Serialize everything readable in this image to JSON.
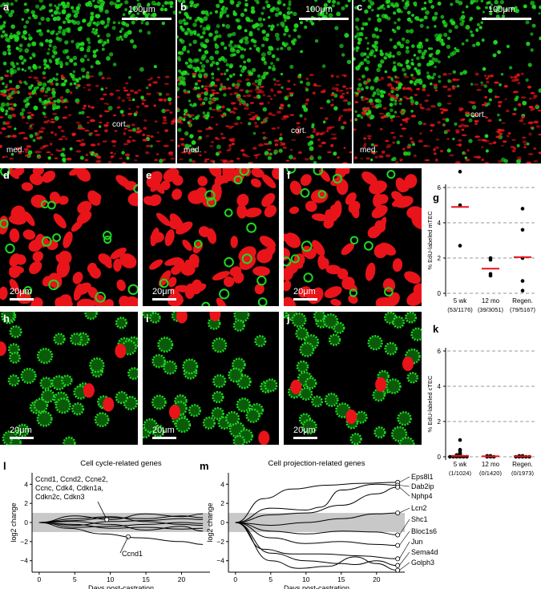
{
  "panels": {
    "a": {
      "label": "a",
      "scale": "100μm",
      "cortex": "cort.",
      "medulla": "med."
    },
    "b": {
      "label": "b",
      "scale": "100μm",
      "cortex": "cort.",
      "medulla": "med."
    },
    "c": {
      "label": "c",
      "scale": "100μm",
      "cortex": "cort.",
      "medulla": "med."
    },
    "d": {
      "label": "d",
      "scale": "20μm"
    },
    "e": {
      "label": "e",
      "scale": "20μm"
    },
    "f": {
      "label": "f",
      "scale": "20μm"
    },
    "h": {
      "label": "h",
      "scale": "20μm"
    },
    "i": {
      "label": "i",
      "scale": "20μm"
    },
    "j": {
      "label": "j",
      "scale": "20μm"
    }
  },
  "colors": {
    "green": "#1fd81f",
    "red": "#e8141a",
    "median": "#e8141a",
    "band": "#c8c8c8"
  },
  "chart_data": [
    {
      "id": "g",
      "label": "g",
      "type": "scatter",
      "ylabel": "% EdU-labeled mTEC",
      "ylim": [
        0,
        6
      ],
      "yticks": [
        0,
        2,
        4,
        6
      ],
      "categories": [
        "5 wk",
        "12 mo",
        "Regen."
      ],
      "counts": [
        "(53/1176)",
        "(39/3051)",
        "(79/5167)"
      ],
      "points": [
        [
          6.9,
          5.0,
          2.7
        ],
        [
          1.9,
          1.1,
          1.0,
          2.0
        ],
        [
          4.8,
          3.6,
          2.0,
          0.7,
          0.15
        ]
      ],
      "medians": [
        4.9,
        1.4,
        2.05
      ],
      "grid": "dashed"
    },
    {
      "id": "k",
      "label": "k",
      "type": "scatter",
      "ylabel": "% EdU-labeled cTEC",
      "ylim": [
        0,
        6
      ],
      "yticks": [
        0,
        2,
        4,
        6
      ],
      "categories": [
        "5 wk",
        "12 mo",
        "Regen."
      ],
      "counts": [
        "(1/1024)",
        "(0/1420)",
        "(0/1973)"
      ],
      "points": [
        [
          0.95,
          0.4,
          0.35,
          0.25,
          0.2,
          0.15,
          0.1,
          0.1,
          0.05,
          0.05,
          0.0,
          0.0,
          0.0,
          0.0,
          0.0,
          0.0
        ],
        [
          0.05,
          0.05,
          0.0,
          0.0,
          0.0
        ],
        [
          0.05,
          0.05,
          0.0,
          0.0,
          0.0,
          0.0,
          0.0
        ]
      ],
      "medians": [
        0.05,
        0.03,
        0.03
      ],
      "grid": "dashed"
    },
    {
      "id": "l",
      "label": "l",
      "type": "line",
      "title": "Cell cycle-related genes",
      "xlabel": "Days post-castration",
      "ylabel": "log2 change",
      "xlim": [
        -1,
        24
      ],
      "ylim": [
        -5.2,
        5.2
      ],
      "xticks": [
        0,
        5,
        10,
        15,
        20
      ],
      "yticks": [
        -4,
        -2,
        0,
        2,
        4
      ],
      "band": [
        -1,
        1
      ],
      "annotation_group": [
        "Ccnd1, Ccnd2, Ccne2,",
        "Ccnc, Cdk4, Cdkn1a,",
        "Cdkn2c, Cdkn3"
      ],
      "annotation_single": "Ccnd1",
      "series": [
        {
          "x": [
            0,
            5,
            10,
            15,
            20,
            23
          ],
          "y": [
            0,
            0.7,
            0.3,
            0.9,
            0.6,
            0.9
          ]
        },
        {
          "x": [
            0,
            5,
            10,
            15,
            20,
            23
          ],
          "y": [
            0,
            0.2,
            0.5,
            0.4,
            0.7,
            0.5
          ]
        },
        {
          "x": [
            0,
            5,
            10,
            15,
            20,
            23
          ],
          "y": [
            0,
            -0.3,
            0.1,
            0.2,
            0.4,
            0.3
          ]
        },
        {
          "x": [
            0,
            5,
            10,
            15,
            20,
            23
          ],
          "y": [
            0,
            -0.5,
            -0.4,
            -0.2,
            0.0,
            -0.1
          ]
        },
        {
          "x": [
            0,
            5,
            10,
            15,
            20,
            23
          ],
          "y": [
            0,
            0.4,
            0.6,
            0.1,
            -0.2,
            -0.3
          ]
        },
        {
          "x": [
            0,
            5,
            10,
            15,
            20,
            23
          ],
          "y": [
            0,
            -0.2,
            -0.6,
            -0.5,
            -0.7,
            -0.6
          ]
        },
        {
          "x": [
            0,
            5,
            10,
            15,
            20,
            23
          ],
          "y": [
            0,
            0.1,
            -0.2,
            -0.8,
            -0.4,
            -0.9
          ]
        },
        {
          "x": [
            0,
            4,
            9,
            14,
            20,
            23
          ],
          "y": [
            0,
            -0.6,
            -1.2,
            -1.6,
            -2.0,
            -2.3
          ]
        }
      ]
    },
    {
      "id": "m",
      "label": "m",
      "type": "line",
      "title": "Cell projection-related genes",
      "xlabel": "Days post-castration",
      "ylabel": "log2 change",
      "xlim": [
        -1,
        24
      ],
      "ylim": [
        -5.2,
        5.2
      ],
      "xticks": [
        0,
        5,
        10,
        15,
        20
      ],
      "yticks": [
        -4,
        -2,
        0,
        2,
        4
      ],
      "band": [
        -1,
        1
      ],
      "gene_labels": [
        "Eps8l1",
        "Dab2ip",
        "Nphp4",
        "Lcn2",
        "Shc1",
        "Bloc1s6",
        "Jun",
        "Sema4d",
        "Golph3"
      ],
      "series": [
        {
          "name": "Eps8l1",
          "x": [
            0,
            4,
            8,
            13,
            18,
            23
          ],
          "y": [
            0,
            2.5,
            3.5,
            3.9,
            4.1,
            4.2
          ]
        },
        {
          "name": "Dab2ip",
          "x": [
            0,
            5,
            10,
            12,
            15,
            20,
            23
          ],
          "y": [
            0,
            1.5,
            1.3,
            1.6,
            3.4,
            4.0,
            3.9
          ]
        },
        {
          "name": "Nphp4",
          "x": [
            0,
            5,
            10,
            15,
            20,
            23
          ],
          "y": [
            0,
            0.8,
            1.0,
            1.8,
            3.0,
            3.7
          ]
        },
        {
          "name": "Lcn2",
          "x": [
            0,
            5,
            10,
            15,
            20,
            23
          ],
          "y": [
            0,
            -0.3,
            0.0,
            0.4,
            0.9,
            1.0
          ]
        },
        {
          "name": "Shc1",
          "x": [
            0,
            5,
            10,
            15,
            20,
            23
          ],
          "y": [
            0,
            -0.9,
            -1.2,
            -0.9,
            -1.0,
            -1.3
          ]
        },
        {
          "name": "Bloc1s6",
          "x": [
            0,
            5,
            10,
            15,
            20,
            23
          ],
          "y": [
            0,
            -1.6,
            -2.2,
            -2.0,
            -2.3,
            -2.4
          ]
        },
        {
          "name": "Jun",
          "x": [
            0,
            4,
            8,
            12,
            18,
            23
          ],
          "y": [
            0,
            -2.8,
            -3.3,
            -3.3,
            -3.5,
            -3.8
          ]
        },
        {
          "name": "Sema4d",
          "x": [
            0,
            5,
            10,
            15,
            17,
            20,
            23
          ],
          "y": [
            0,
            -3.2,
            -4.0,
            -4.3,
            -4.4,
            -4.0,
            -4.5
          ]
        },
        {
          "name": "Golph3",
          "x": [
            0,
            5,
            9,
            13,
            17,
            20,
            23
          ],
          "y": [
            0,
            -4.0,
            -4.8,
            -4.6,
            -3.6,
            -4.3,
            -5.0
          ]
        }
      ]
    }
  ]
}
